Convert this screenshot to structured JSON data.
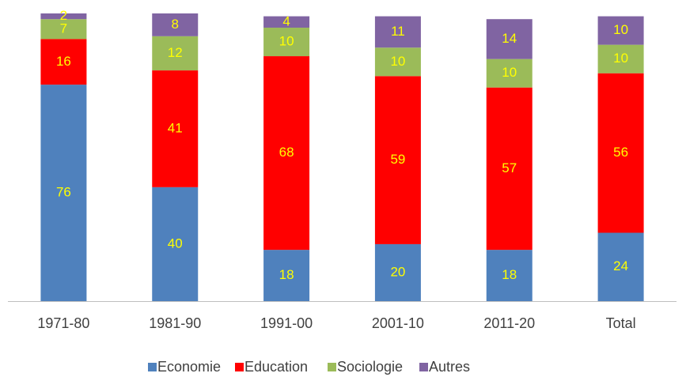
{
  "chart_data": {
    "type": "stacked_bar",
    "categories": [
      "1971-80",
      "1981-90",
      "1991-00",
      "2001-10",
      "2011-20",
      "Total"
    ],
    "series": [
      {
        "name": "Economie",
        "color": "#4f81bd",
        "values": [
          76,
          40,
          18,
          20,
          18,
          24
        ]
      },
      {
        "name": "Education",
        "color": "#ff0000",
        "values": [
          16,
          41,
          68,
          59,
          57,
          56
        ]
      },
      {
        "name": "Sociologie",
        "color": "#9bbb59",
        "values": [
          7,
          12,
          10,
          10,
          10,
          10
        ]
      },
      {
        "name": "Autres",
        "color": "#8064a2",
        "values": [
          2,
          8,
          4,
          11,
          14,
          10
        ]
      }
    ],
    "label_color": "#ffff00"
  }
}
